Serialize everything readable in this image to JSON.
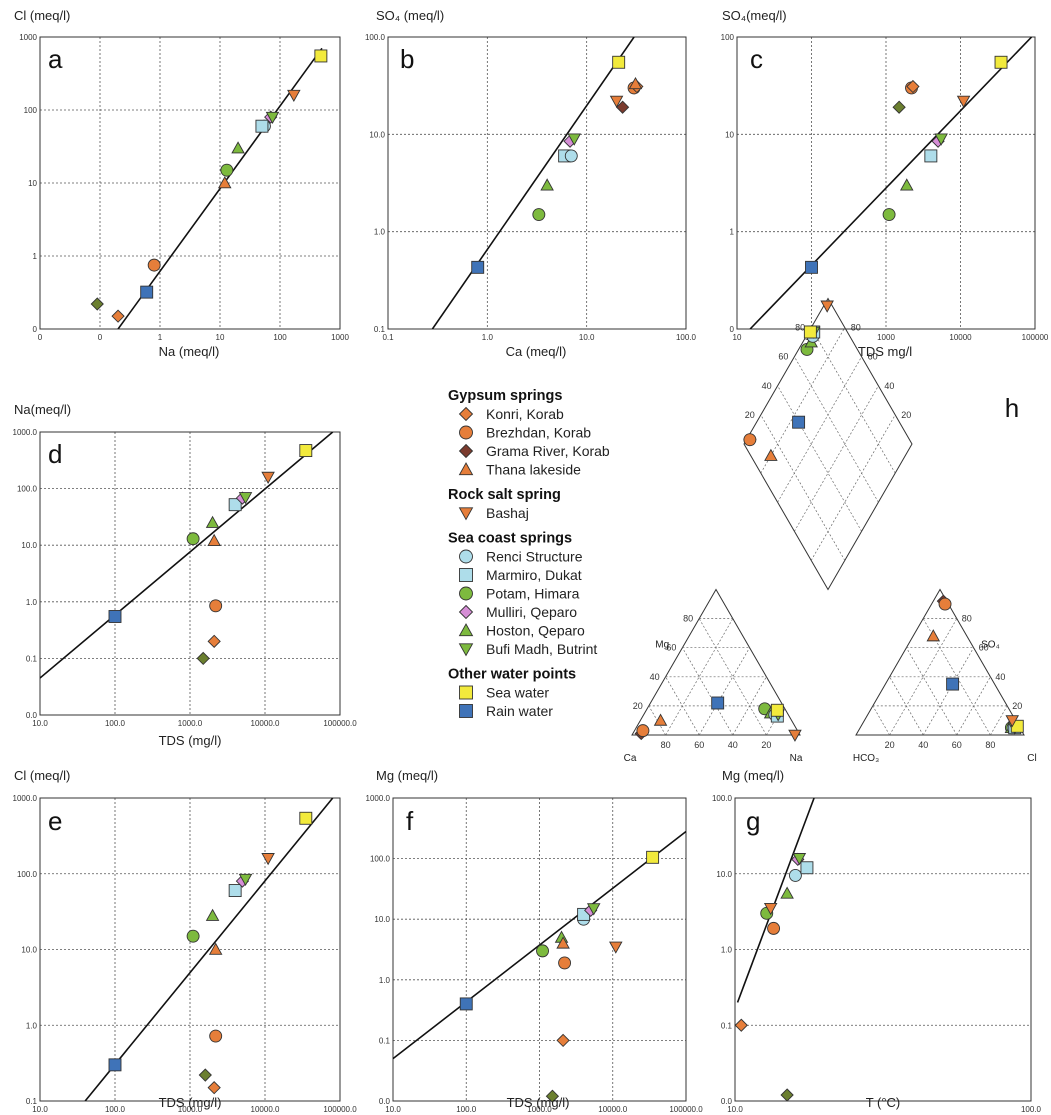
{
  "styles": {
    "Konri, Korab": {
      "shape": "diamond",
      "color": "#E67E3A"
    },
    "Brezhdan, Korab": {
      "shape": "circle",
      "color": "#E67E3A"
    },
    "Grama River, Korab": {
      "shape": "diamond",
      "color": "#7B3B2E"
    },
    "Thana lakeside": {
      "shape": "triangle-up",
      "color": "#E67E3A"
    },
    "Bashaj": {
      "shape": "triangle-down",
      "color": "#E67E3A"
    },
    "Renci Structure": {
      "shape": "circle",
      "color": "#AEDDEA"
    },
    "Marmiro, Dukat": {
      "shape": "square",
      "color": "#AEDDEA"
    },
    "Potam, Himara": {
      "shape": "circle",
      "color": "#7DBA3E"
    },
    "Mulliri, Qeparo": {
      "shape": "diamond",
      "color": "#D68ED6"
    },
    "Hoston, Qeparo": {
      "shape": "triangle-up",
      "color": "#7DBA3E"
    },
    "Bufi Madh, Butrint": {
      "shape": "triangle-down",
      "color": "#7DBA3E"
    },
    "Sea water": {
      "shape": "square",
      "color": "#F2EA3C"
    },
    "Rain water": {
      "shape": "square",
      "color": "#3F73B8"
    },
    "Unlabeled": {
      "shape": "diamond",
      "color": "#6B7F2F"
    }
  },
  "legend": [
    {
      "heading": "Gypsum springs",
      "items": [
        "Konri, Korab",
        "Brezhdan, Korab",
        "Grama River, Korab",
        "Thana lakeside"
      ]
    },
    {
      "heading": "Rock salt spring",
      "items": [
        "Bashaj"
      ]
    },
    {
      "heading": "Sea coast springs",
      "items": [
        "Renci Structure",
        "Marmiro, Dukat",
        "Potam, Himara",
        "Mulliri, Qeparo",
        "Hoston, Qeparo",
        "Bufi Madh, Butrint"
      ]
    },
    {
      "heading": "Other water points",
      "items": [
        "Sea water",
        "Rain water"
      ]
    }
  ],
  "chart_data": [
    {
      "panel": "a",
      "type": "scatter",
      "ylabel": "Cl (meq/l)",
      "xlabel": "Na (meq/l)",
      "xscale": "log",
      "yscale": "log",
      "xlim": [
        0.01,
        1000
      ],
      "ylim": [
        0.1,
        1000
      ],
      "xticks": [
        0.01,
        0.1,
        1,
        10,
        100,
        1000
      ],
      "xticklabels": [
        "0",
        "0",
        "1",
        "10",
        "100",
        "1000"
      ],
      "yticks": [
        0.1,
        1,
        10,
        100,
        1000
      ],
      "yticklabels": [
        "0",
        "1",
        "10",
        "100",
        "1000"
      ],
      "trendline": [
        [
          0.2,
          0.1
        ],
        [
          500,
          700
        ]
      ],
      "points": [
        {
          "series": "Unlabeled",
          "x": 0.09,
          "y": 0.22
        },
        {
          "series": "Konri, Korab",
          "x": 0.2,
          "y": 0.15
        },
        {
          "series": "Brezhdan, Korab",
          "x": 0.8,
          "y": 0.75
        },
        {
          "series": "Rain water",
          "x": 0.6,
          "y": 0.32
        },
        {
          "series": "Thana lakeside",
          "x": 12,
          "y": 10
        },
        {
          "series": "Potam, Himara",
          "x": 13,
          "y": 15
        },
        {
          "series": "Hoston, Qeparo",
          "x": 20,
          "y": 30
        },
        {
          "series": "Renci Structure",
          "x": 55,
          "y": 60
        },
        {
          "series": "Marmiro, Dukat",
          "x": 50,
          "y": 60
        },
        {
          "series": "Mulliri, Qeparo",
          "x": 70,
          "y": 80
        },
        {
          "series": "Bufi Madh, Butrint",
          "x": 75,
          "y": 80
        },
        {
          "series": "Bashaj",
          "x": 170,
          "y": 160
        },
        {
          "series": "Sea water",
          "x": 480,
          "y": 550
        }
      ]
    },
    {
      "panel": "b",
      "type": "scatter",
      "ylabel": "SO₄ (meq/l)",
      "xlabel": "Ca (meq/l)",
      "xscale": "log",
      "yscale": "log",
      "xlim": [
        0.1,
        100
      ],
      "ylim": [
        0.1,
        100
      ],
      "xticks": [
        0.1,
        1,
        10,
        100
      ],
      "xticklabels": [
        "0.1",
        "1.0",
        "10.0",
        "100.0"
      ],
      "yticks": [
        0.1,
        1,
        10,
        100
      ],
      "yticklabels": [
        "0.1",
        "1.0",
        "10.0",
        "100.0"
      ],
      "trendline": [
        [
          0.28,
          0.1
        ],
        [
          30,
          100
        ]
      ],
      "points": [
        {
          "series": "Rain water",
          "x": 0.8,
          "y": 0.43
        },
        {
          "series": "Potam, Himara",
          "x": 3.3,
          "y": 1.5
        },
        {
          "series": "Hoston, Qeparo",
          "x": 4,
          "y": 3
        },
        {
          "series": "Marmiro, Dukat",
          "x": 6,
          "y": 6
        },
        {
          "series": "Renci Structure",
          "x": 7,
          "y": 6
        },
        {
          "series": "Mulliri, Qeparo",
          "x": 6.8,
          "y": 8.5
        },
        {
          "series": "Bufi Madh, Butrint",
          "x": 7.5,
          "y": 9
        },
        {
          "series": "Bashaj",
          "x": 20,
          "y": 22
        },
        {
          "series": "Grama River, Korab",
          "x": 23,
          "y": 19
        },
        {
          "series": "Sea water",
          "x": 21,
          "y": 55
        },
        {
          "series": "Brezhdan, Korab",
          "x": 30,
          "y": 30
        },
        {
          "series": "Konri, Korab",
          "x": 32,
          "y": 31
        },
        {
          "series": "Thana lakeside",
          "x": 31,
          "y": 33
        }
      ]
    },
    {
      "panel": "c",
      "type": "scatter",
      "ylabel": "SO₄(meq/l)",
      "xlabel": "TDS mg/l",
      "xscale": "log",
      "yscale": "log",
      "xlim": [
        10,
        100000
      ],
      "ylim": [
        0.1,
        100
      ],
      "xticks": [
        10,
        100,
        1000,
        10000,
        100000
      ],
      "xticklabels": [
        "10",
        "100",
        "1000",
        "10000",
        "100000"
      ],
      "yticks": [
        0.1,
        1,
        10,
        100
      ],
      "yticklabels": [
        "0",
        "1",
        "10",
        "100"
      ],
      "trendline": [
        [
          15,
          0.1
        ],
        [
          90000,
          100
        ]
      ],
      "points": [
        {
          "series": "Rain water",
          "x": 100,
          "y": 0.43
        },
        {
          "series": "Potam, Himara",
          "x": 1100,
          "y": 1.5
        },
        {
          "series": "Hoston, Qeparo",
          "x": 1900,
          "y": 3
        },
        {
          "series": "Marmiro, Dukat",
          "x": 4000,
          "y": 6
        },
        {
          "series": "Mulliri, Qeparo",
          "x": 5000,
          "y": 8.5
        },
        {
          "series": "Bufi Madh, Butrint",
          "x": 5500,
          "y": 9
        },
        {
          "series": "Unlabeled",
          "x": 1500,
          "y": 19
        },
        {
          "series": "Brezhdan, Korab",
          "x": 2200,
          "y": 30
        },
        {
          "series": "Konri, Korab",
          "x": 2300,
          "y": 31
        },
        {
          "series": "Bashaj",
          "x": 11000,
          "y": 22
        },
        {
          "series": "Sea water",
          "x": 35000,
          "y": 55
        }
      ]
    },
    {
      "panel": "d",
      "type": "scatter",
      "ylabel": "Na(meq/l)",
      "xlabel": "TDS (mg/l)",
      "xscale": "log",
      "yscale": "log",
      "xlim": [
        10,
        100000
      ],
      "ylim": [
        0.01,
        1000
      ],
      "xticks": [
        10,
        100,
        1000,
        10000,
        100000
      ],
      "xticklabels": [
        "10.0",
        "100.0",
        "1000.0",
        "10000.0",
        "100000.0"
      ],
      "yticks": [
        0.01,
        0.1,
        1,
        10,
        100,
        1000
      ],
      "yticklabels": [
        "0.0",
        "0.1",
        "1.0",
        "10.0",
        "100.0",
        "1000.0"
      ],
      "trendline": [
        [
          10,
          0.045
        ],
        [
          80000,
          1000
        ]
      ],
      "points": [
        {
          "series": "Rain water",
          "x": 100,
          "y": 0.55
        },
        {
          "series": "Potam, Himara",
          "x": 1100,
          "y": 13
        },
        {
          "series": "Thana lakeside",
          "x": 2100,
          "y": 12
        },
        {
          "series": "Hoston, Qeparo",
          "x": 2000,
          "y": 25
        },
        {
          "series": "Marmiro, Dukat",
          "x": 4000,
          "y": 52
        },
        {
          "series": "Mulliri, Qeparo",
          "x": 5000,
          "y": 68
        },
        {
          "series": "Bufi Madh, Butrint",
          "x": 5500,
          "y": 70
        },
        {
          "series": "Bashaj",
          "x": 11000,
          "y": 160
        },
        {
          "series": "Sea water",
          "x": 35000,
          "y": 470
        },
        {
          "series": "Brezhdan, Korab",
          "x": 2200,
          "y": 0.85
        },
        {
          "series": "Konri, Korab",
          "x": 2100,
          "y": 0.2
        },
        {
          "series": "Unlabeled",
          "x": 1500,
          "y": 0.1
        }
      ]
    },
    {
      "panel": "e",
      "type": "scatter",
      "ylabel": "Cl (meq/l)",
      "xlabel": "TDS (mg/l)",
      "xscale": "log",
      "yscale": "log",
      "xlim": [
        10,
        100000
      ],
      "ylim": [
        0.1,
        1000
      ],
      "xticks": [
        10,
        100,
        1000,
        10000,
        100000
      ],
      "xticklabels": [
        "10.0",
        "100.0",
        "1000.0",
        "10000.0",
        "100000.0"
      ],
      "yticks": [
        0.1,
        1,
        10,
        100,
        1000
      ],
      "yticklabels": [
        "0.1",
        "1.0",
        "10.0",
        "100.0",
        "1000.0"
      ],
      "trendline": [
        [
          40,
          0.1
        ],
        [
          80000,
          1000
        ]
      ],
      "points": [
        {
          "series": "Rain water",
          "x": 100,
          "y": 0.3
        },
        {
          "series": "Potam, Himara",
          "x": 1100,
          "y": 15
        },
        {
          "series": "Hoston, Qeparo",
          "x": 2000,
          "y": 28
        },
        {
          "series": "Thana lakeside",
          "x": 2200,
          "y": 10
        },
        {
          "series": "Marmiro, Dukat",
          "x": 4000,
          "y": 60
        },
        {
          "series": "Mulliri, Qeparo",
          "x": 5000,
          "y": 80
        },
        {
          "series": "Bufi Madh, Butrint",
          "x": 5500,
          "y": 85
        },
        {
          "series": "Bashaj",
          "x": 11000,
          "y": 160
        },
        {
          "series": "Sea water",
          "x": 35000,
          "y": 540
        },
        {
          "series": "Brezhdan, Korab",
          "x": 2200,
          "y": 0.72
        },
        {
          "series": "Unlabeled",
          "x": 1600,
          "y": 0.22
        },
        {
          "series": "Konri, Korab",
          "x": 2100,
          "y": 0.15
        }
      ]
    },
    {
      "panel": "f",
      "type": "scatter",
      "ylabel": "Mg (meq/l)",
      "xlabel": "TDS (mg/l)",
      "xscale": "log",
      "yscale": "log",
      "xlim": [
        10,
        100000
      ],
      "ylim": [
        0.01,
        1000
      ],
      "xticks": [
        10,
        100,
        1000,
        10000,
        100000
      ],
      "xticklabels": [
        "10.0",
        "100.0",
        "1000.0",
        "10000.0",
        "100000.0"
      ],
      "yticks": [
        0.01,
        0.1,
        1,
        10,
        100,
        1000
      ],
      "yticklabels": [
        "0.0",
        "0.1",
        "1.0",
        "10.0",
        "100.0",
        "1000.0"
      ],
      "trendline": [
        [
          10,
          0.05
        ],
        [
          100000,
          280
        ]
      ],
      "points": [
        {
          "series": "Rain water",
          "x": 100,
          "y": 0.4
        },
        {
          "series": "Potam, Himara",
          "x": 1100,
          "y": 3
        },
        {
          "series": "Hoston, Qeparo",
          "x": 2000,
          "y": 5
        },
        {
          "series": "Thana lakeside",
          "x": 2100,
          "y": 4
        },
        {
          "series": "Brezhdan, Korab",
          "x": 2200,
          "y": 1.9
        },
        {
          "series": "Renci Structure",
          "x": 4000,
          "y": 10
        },
        {
          "series": "Marmiro, Dukat",
          "x": 4000,
          "y": 12
        },
        {
          "series": "Mulliri, Qeparo",
          "x": 5000,
          "y": 14
        },
        {
          "series": "Bufi Madh, Butrint",
          "x": 5500,
          "y": 15
        },
        {
          "series": "Bashaj",
          "x": 11000,
          "y": 3.5
        },
        {
          "series": "Sea water",
          "x": 35000,
          "y": 105
        },
        {
          "series": "Konri, Korab",
          "x": 2100,
          "y": 0.1
        },
        {
          "series": "Unlabeled",
          "x": 1500,
          "y": 0.012
        }
      ]
    },
    {
      "panel": "g",
      "type": "scatter",
      "ylabel": "Mg (meq/l)",
      "xlabel": "T (°C)",
      "xscale": "log",
      "yscale": "log",
      "xlim": [
        10,
        100
      ],
      "ylim": [
        0.01,
        100
      ],
      "xticks": [
        10,
        100
      ],
      "xticklabels": [
        "10.0",
        "100.0"
      ],
      "yticks": [
        0.01,
        0.1,
        1,
        10,
        100
      ],
      "yticklabels": [
        "0.0",
        "0.1",
        "1.0",
        "10.0",
        "100.0"
      ],
      "trendline": [
        [
          10.2,
          0.2
        ],
        [
          18.5,
          100
        ]
      ],
      "points": [
        {
          "series": "Konri, Korab",
          "x": 10.5,
          "y": 0.1
        },
        {
          "series": "Unlabeled",
          "x": 15,
          "y": 0.012
        },
        {
          "series": "Brezhdan, Korab",
          "x": 13.5,
          "y": 1.9
        },
        {
          "series": "Potam, Himara",
          "x": 12.8,
          "y": 3
        },
        {
          "series": "Bashaj",
          "x": 13.2,
          "y": 3.5
        },
        {
          "series": "Hoston, Qeparo",
          "x": 15,
          "y": 5.5
        },
        {
          "series": "Renci Structure",
          "x": 16,
          "y": 9.5
        },
        {
          "series": "Marmiro, Dukat",
          "x": 17.5,
          "y": 12
        },
        {
          "series": "Mulliri, Qeparo",
          "x": 16.3,
          "y": 15.5
        },
        {
          "series": "Bufi Madh, Butrint",
          "x": 16.5,
          "y": 16
        }
      ]
    },
    {
      "panel": "h",
      "type": "piper",
      "cation_labels": [
        "Ca",
        "Mg",
        "Na"
      ],
      "anion_labels": [
        "HCO₃",
        "SO₄",
        "Cl"
      ],
      "ticks": [
        "20",
        "40",
        "60",
        "80"
      ],
      "points": [
        {
          "series": "Grama River, Korab",
          "ca": 94,
          "na": 5,
          "hco3": 2,
          "cl": 6
        },
        {
          "series": "Brezhdan, Korab",
          "ca": 92,
          "na": 5,
          "hco3": 2,
          "cl": 8
        },
        {
          "series": "Thana lakeside",
          "ca": 78,
          "na": 12,
          "hco3": 20,
          "cl": 12
        },
        {
          "series": "Rain water",
          "ca": 38,
          "na": 40,
          "hco3": 25,
          "cl": 40
        },
        {
          "series": "Potam, Himara",
          "ca": 12,
          "na": 70,
          "hco3": 5,
          "cl": 90
        },
        {
          "series": "Hoston, Qeparo",
          "ca": 10,
          "na": 75,
          "hco3": 5,
          "cl": 90
        },
        {
          "series": "Renci Structure",
          "ca": 8,
          "na": 78,
          "hco3": 4,
          "cl": 91
        },
        {
          "series": "Marmiro, Dukat",
          "ca": 7,
          "na": 80,
          "hco3": 3,
          "cl": 92
        },
        {
          "series": "Bufi Madh, Butrint",
          "ca": 6,
          "na": 80,
          "hco3": 3,
          "cl": 92
        },
        {
          "series": "Sea water",
          "ca": 5,
          "na": 78,
          "hco3": 1,
          "cl": 93
        },
        {
          "series": "Bashaj",
          "ca": 3,
          "na": 97,
          "hco3": 2,
          "cl": 88
        }
      ]
    }
  ]
}
